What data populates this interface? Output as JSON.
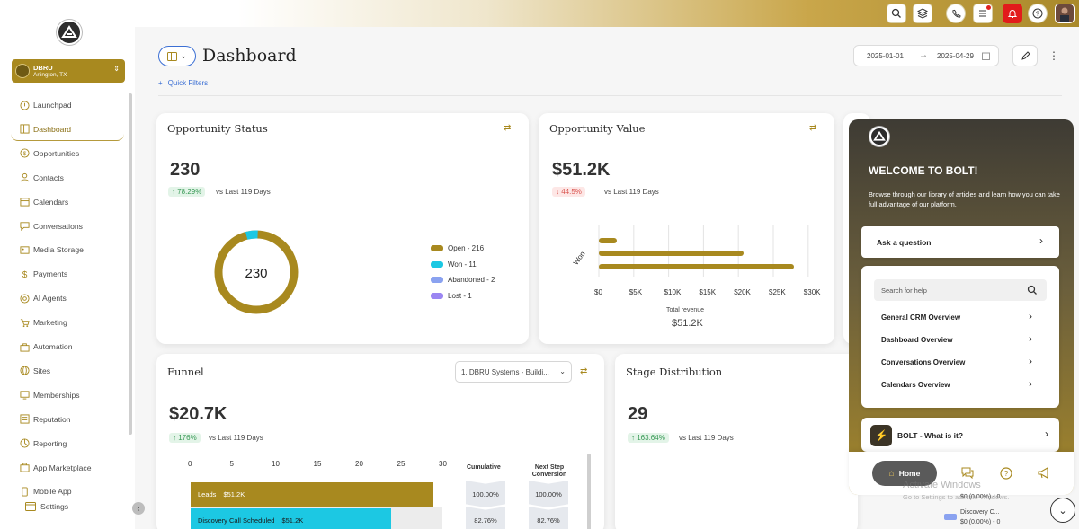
{
  "topbar": {
    "icons": [
      "search-icon",
      "layers-icon",
      "phone-icon",
      "list-icon",
      "bell-icon",
      "help-icon",
      "user-avatar"
    ]
  },
  "sidebar": {
    "account": {
      "name": "DBRU",
      "location": "Arlington, TX"
    },
    "items": [
      {
        "label": "Launchpad",
        "icon": "launchpad-icon"
      },
      {
        "label": "Dashboard",
        "icon": "dashboard-icon",
        "active": true
      },
      {
        "label": "Opportunities",
        "icon": "dollar-icon"
      },
      {
        "label": "Contacts",
        "icon": "contacts-icon"
      },
      {
        "label": "Calendars",
        "icon": "calendar-icon"
      },
      {
        "label": "Conversations",
        "icon": "chat-icon"
      },
      {
        "label": "Media Storage",
        "icon": "media-icon"
      },
      {
        "label": "Payments",
        "icon": "payments-icon"
      },
      {
        "label": "AI Agents",
        "icon": "ai-icon"
      },
      {
        "label": "Marketing",
        "icon": "marketing-icon"
      },
      {
        "label": "Automation",
        "icon": "automation-icon"
      },
      {
        "label": "Sites",
        "icon": "globe-icon"
      },
      {
        "label": "Memberships",
        "icon": "membership-icon"
      },
      {
        "label": "Reputation",
        "icon": "reputation-icon"
      },
      {
        "label": "Reporting",
        "icon": "reporting-icon"
      },
      {
        "label": "App Marketplace",
        "icon": "marketplace-icon"
      },
      {
        "label": "Mobile App",
        "icon": "mobile-icon"
      }
    ],
    "settings_label": "Settings"
  },
  "header": {
    "title": "Dashboard",
    "quick_filters": "Quick Filters",
    "date_from": "2025-01-01",
    "date_to": "2025-04-29"
  },
  "opportunity_status": {
    "title": "Opportunity Status",
    "value": "230",
    "change": "78.29%",
    "vs": "vs Last 119 Days",
    "center": "230",
    "legend": [
      {
        "label": "Open - 216",
        "color": "#a8891f"
      },
      {
        "label": "Won - 11",
        "color": "#1cc8e3"
      },
      {
        "label": "Abandoned - 2",
        "color": "#8aa2f0"
      },
      {
        "label": "Lost - 1",
        "color": "#9b86f2"
      }
    ]
  },
  "opportunity_value": {
    "title": "Opportunity Value",
    "value": "$51.2K",
    "change": "44.5%",
    "vs": "vs Last 119 Days",
    "y_label": "Won",
    "ticks": [
      "$0",
      "$5K",
      "$10K",
      "$15K",
      "$20K",
      "$25K",
      "$30K"
    ],
    "total_label": "Total revenue",
    "total_value": "$51.2K"
  },
  "funnel": {
    "title": "Funnel",
    "value": "$20.7K",
    "change": "176%",
    "vs": "vs Last 119 Days",
    "pipeline": "1. DBRU Systems - Buildi...",
    "ticks": [
      "0",
      "5",
      "10",
      "15",
      "20",
      "25",
      "30"
    ],
    "col_cumulative": "Cumulative",
    "col_next": "Next Step Conversion",
    "rows": [
      {
        "label": "Leads",
        "amount": "$51.2K",
        "cumulative": "100.00%",
        "next": "100.00%"
      },
      {
        "label": "Discovery Call Scheduled",
        "amount": "$51.2K",
        "cumulative": "82.76%",
        "next": "82.76%"
      }
    ]
  },
  "stage_distribution": {
    "title": "Stage Distribution",
    "value": "29",
    "change": "163.64%",
    "vs": "vs Last 119 Days",
    "legend_tail": "$0 (0.00%) - 0",
    "legend_item": "Discovery C...",
    "legend_item_value": "$0 (0.00%) - 0"
  },
  "help": {
    "title": "WELCOME TO BOLT!",
    "subtitle": "Browse through our library of articles and learn how you can take full advantage of our platform.",
    "ask": "Ask a question",
    "search_placeholder": "Search for help",
    "links": [
      "General CRM Overview",
      "Dashboard Overview",
      "Conversations Overview",
      "Calendars Overview"
    ],
    "bolt": "BOLT - What is it?",
    "home": "Home"
  },
  "watermark": {
    "line1": "Activate Windows",
    "line2": "Go to Settings to activate Windows."
  },
  "colors": {
    "gold": "#a8891f",
    "cyan": "#1cc8e3"
  }
}
